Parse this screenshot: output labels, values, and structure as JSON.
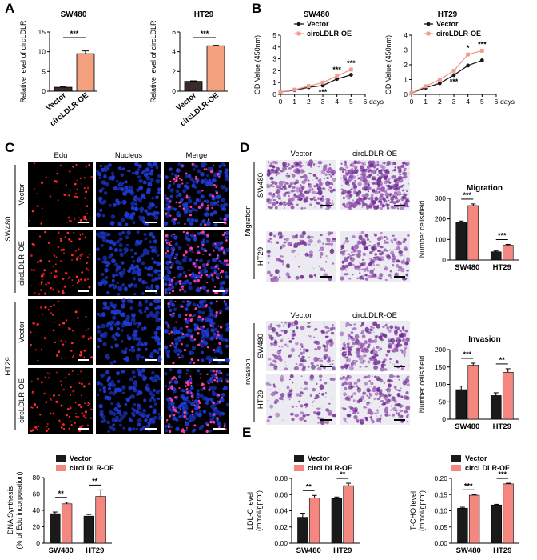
{
  "colors": {
    "vector": "#1a1a1a",
    "oe": "#f4877f",
    "oe_line": "#f29a90",
    "panelA_vector": "#3a2a2a",
    "panelA_oe": "#f3a07e"
  },
  "panels": {
    "A": "A",
    "B": "B",
    "C": "C",
    "D": "D",
    "E": "E"
  },
  "legend": {
    "vector": "Vector",
    "oe": "circLDLR-OE"
  },
  "panelC": {
    "cols": [
      "Edu",
      "Nucleus",
      "Merge"
    ],
    "groups": [
      "SW480",
      "HT29"
    ],
    "rows": [
      "Vector",
      "circLDLR-OE",
      "Vector",
      "circLDLR-OE"
    ]
  },
  "panelD": {
    "cols": [
      "Vector",
      "circLDLR-OE"
    ],
    "side_migration": "Migration",
    "side_invasion": "Invasion",
    "rows": [
      "SW480",
      "HT29"
    ]
  },
  "chart_data": [
    {
      "id": "A1",
      "type": "bar",
      "title": "SW480",
      "ylabel": "Relative level of circLDLR",
      "categories": [
        "Vector",
        "circLDLR-OE"
      ],
      "values": [
        1.0,
        9.5
      ],
      "errors": [
        0.1,
        0.7
      ],
      "ylim": [
        0,
        15
      ],
      "yticks": [
        "0",
        "5",
        "10",
        "15"
      ],
      "sig": "***"
    },
    {
      "id": "A2",
      "type": "bar",
      "title": "HT29",
      "ylabel": "Relative level of circLDLR",
      "categories": [
        "Vector",
        "circLDLR-OE"
      ],
      "values": [
        1.0,
        4.6
      ],
      "errors": [
        0.05,
        0.05
      ],
      "ylim": [
        0,
        6
      ],
      "yticks": [
        "0",
        "2",
        "4",
        "6"
      ],
      "sig": "***"
    },
    {
      "id": "B1",
      "type": "line",
      "title": "SW480",
      "ylabel": "OD Value (450nm)",
      "xlabel": "days",
      "x": [
        0,
        1,
        2,
        3,
        4,
        5
      ],
      "xticks": [
        "0",
        "1",
        "2",
        "3",
        "4",
        "5",
        "6"
      ],
      "xlim": [
        0,
        6
      ],
      "ylim": [
        0,
        5
      ],
      "yticks": [
        "0",
        "1",
        "2",
        "3",
        "4",
        "5"
      ],
      "series": [
        {
          "name": "Vector",
          "values": [
            0.2,
            0.35,
            0.6,
            0.75,
            1.3,
            1.65
          ]
        },
        {
          "name": "circLDLR-OE",
          "values": [
            0.2,
            0.4,
            0.7,
            1.0,
            1.55,
            2.1
          ]
        }
      ],
      "sig": [
        {
          "x": 3,
          "label": "***",
          "pos": "below"
        },
        {
          "x": 4,
          "label": "***",
          "pos": "above"
        },
        {
          "x": 5,
          "label": "***",
          "pos": "above"
        }
      ]
    },
    {
      "id": "B2",
      "type": "line",
      "title": "HT29",
      "ylabel": "OD Value (450nm)",
      "xlabel": "days",
      "x": [
        0,
        1,
        2,
        3,
        4,
        5
      ],
      "xticks": [
        "0",
        "1",
        "2",
        "3",
        "4",
        "5",
        "6"
      ],
      "xlim": [
        0,
        6
      ],
      "ylim": [
        0,
        4
      ],
      "yticks": [
        "0",
        "1",
        "2",
        "3",
        "4"
      ],
      "series": [
        {
          "name": "Vector",
          "values": [
            0.1,
            0.45,
            0.75,
            1.3,
            1.95,
            2.3
          ]
        },
        {
          "name": "circLDLR-OE",
          "values": [
            0.1,
            0.55,
            1.0,
            1.6,
            2.7,
            2.95
          ]
        }
      ],
      "sig": [
        {
          "x": 3,
          "label": "***",
          "pos": "below"
        },
        {
          "x": 4,
          "label": "*",
          "pos": "above"
        },
        {
          "x": 5,
          "label": "***",
          "pos": "above"
        }
      ]
    },
    {
      "id": "C",
      "type": "bar",
      "ylabel": "DNA Synthesis\n(% of Edu incorporation)",
      "categories": [
        "SW480",
        "HT29"
      ],
      "ylim": [
        0,
        80
      ],
      "yticks": [
        "0",
        "20",
        "40",
        "60",
        "80"
      ],
      "series": [
        {
          "name": "Vector",
          "values": [
            36,
            33
          ],
          "errors": [
            2,
            2
          ]
        },
        {
          "name": "circLDLR-OE",
          "values": [
            48,
            57
          ],
          "errors": [
            2,
            8
          ]
        }
      ],
      "sig": [
        "**",
        "**"
      ]
    },
    {
      "id": "D1",
      "type": "bar",
      "title": "Migration",
      "ylabel": "Number cells/field",
      "categories": [
        "SW480",
        "HT29"
      ],
      "ylim": [
        0,
        300
      ],
      "yticks": [
        "0",
        "100",
        "200",
        "300"
      ],
      "series": [
        {
          "name": "Vector",
          "values": [
            185,
            40
          ],
          "errors": [
            5,
            4
          ]
        },
        {
          "name": "circLDLR-OE",
          "values": [
            265,
            72
          ],
          "errors": [
            8,
            4
          ]
        }
      ],
      "sig": [
        "***",
        "***"
      ]
    },
    {
      "id": "D2",
      "type": "bar",
      "title": "Invasion",
      "ylabel": "Number cells/field",
      "categories": [
        "SW480",
        "HT29"
      ],
      "ylim": [
        0,
        200
      ],
      "yticks": [
        "0",
        "50",
        "100",
        "150",
        "200"
      ],
      "series": [
        {
          "name": "Vector",
          "values": [
            85,
            68
          ],
          "errors": [
            10,
            8
          ]
        },
        {
          "name": "circLDLR-OE",
          "values": [
            155,
            135
          ],
          "errors": [
            6,
            10
          ]
        }
      ],
      "sig": [
        "***",
        "**"
      ]
    },
    {
      "id": "E1",
      "type": "bar",
      "ylabel": "LDL-C level\n(mmol/gprot)",
      "categories": [
        "SW480",
        "HT29"
      ],
      "ylim": [
        0,
        0.08
      ],
      "yticks": [
        "0.00",
        "0.02",
        "0.04",
        "0.06",
        "0.08"
      ],
      "series": [
        {
          "name": "Vector",
          "values": [
            0.032,
            0.055
          ],
          "errors": [
            0.005,
            0.002
          ]
        },
        {
          "name": "circLDLR-OE",
          "values": [
            0.056,
            0.071
          ],
          "errors": [
            0.003,
            0.003
          ]
        }
      ],
      "sig": [
        "**",
        "**"
      ]
    },
    {
      "id": "E2",
      "type": "bar",
      "ylabel": "T-CHO level\n(mmol/gprot)",
      "categories": [
        "SW480",
        "HT29"
      ],
      "ylim": [
        0,
        0.2
      ],
      "yticks": [
        "0.00",
        "0.05",
        "0.10",
        "0.15",
        "0.20"
      ],
      "series": [
        {
          "name": "Vector",
          "values": [
            0.108,
            0.118
          ],
          "errors": [
            0.003,
            0.002
          ]
        },
        {
          "name": "circLDLR-OE",
          "values": [
            0.148,
            0.183
          ],
          "errors": [
            0.002,
            0.002
          ]
        }
      ],
      "sig": [
        "***",
        "***"
      ]
    }
  ]
}
